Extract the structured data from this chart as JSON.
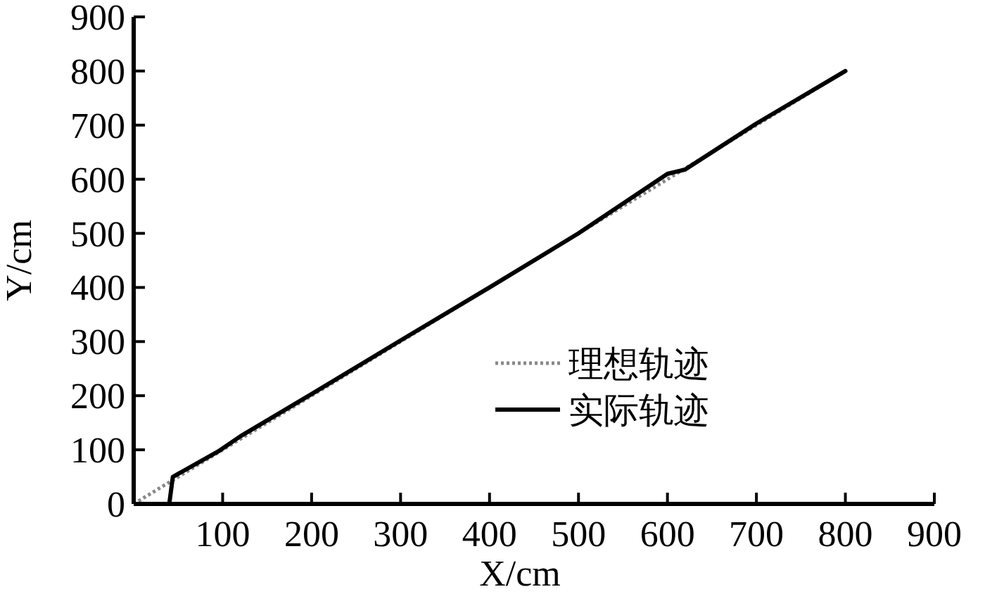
{
  "chart_data": {
    "type": "line",
    "xlabel": "X/cm",
    "ylabel": "Y/cm",
    "xlim": [
      0,
      900
    ],
    "ylim": [
      0,
      900
    ],
    "xticks": [
      {
        "value": 0,
        "label": null
      },
      100,
      200,
      300,
      400,
      500,
      600,
      700,
      800,
      900
    ],
    "yticks": [
      0,
      100,
      200,
      300,
      400,
      500,
      600,
      700,
      800,
      900
    ],
    "grid": false,
    "legend": "right",
    "marker": "none",
    "series": [
      {
        "name": "理想轨迹",
        "color": "#888888",
        "line_style": "dotted",
        "x": [
          0,
          800
        ],
        "values": [
          0,
          800
        ]
      },
      {
        "name": "实际轨迹",
        "color": "#000000",
        "line_style": "solid",
        "x": [
          40,
          44,
          95,
          120,
          200,
          300,
          400,
          500,
          600,
          620,
          700,
          800
        ],
        "values": [
          0,
          50,
          97,
          125,
          203,
          302,
          400,
          500,
          610,
          618,
          703,
          800
        ]
      }
    ]
  }
}
